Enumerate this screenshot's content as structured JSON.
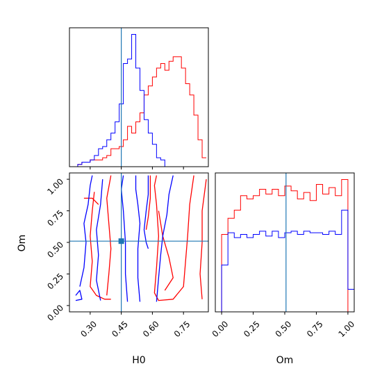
{
  "colors": {
    "series_a": "#ff0000",
    "series_b": "#0000ff",
    "truth": "#1f77b4",
    "axes": "#000000"
  },
  "chart_data": [
    {
      "type": "histogram",
      "panel": "top-left",
      "parameter": "H0",
      "xlim": [
        0.2,
        0.87
      ],
      "bin_edges": [
        0.2,
        0.22,
        0.24,
        0.26,
        0.28,
        0.3,
        0.32,
        0.34,
        0.36,
        0.38,
        0.4,
        0.42,
        0.44,
        0.46,
        0.48,
        0.5,
        0.52,
        0.54,
        0.56,
        0.58,
        0.6,
        0.62,
        0.64,
        0.66,
        0.68,
        0.7,
        0.72,
        0.74,
        0.76,
        0.78,
        0.8,
        0.82,
        0.84,
        0.86
      ],
      "truth_x": 0.45,
      "yticks": "none",
      "x_tick_labels": "hidden",
      "series": [
        {
          "color": "red",
          "counts": [
            0,
            0,
            1,
            2,
            2,
            3,
            3,
            3,
            4,
            5,
            8,
            8,
            9,
            12,
            18,
            15,
            20,
            24,
            32,
            36,
            40,
            44,
            46,
            43,
            47,
            49,
            49,
            44,
            37,
            32,
            23,
            12,
            4
          ]
        },
        {
          "color": "blue",
          "counts": [
            0,
            0,
            1,
            2,
            2,
            3,
            5,
            8,
            9,
            12,
            15,
            20,
            28,
            46,
            48,
            59,
            44,
            34,
            21,
            15,
            10,
            4,
            3,
            0,
            0,
            0,
            0,
            0,
            0,
            0,
            0,
            0,
            0
          ]
        }
      ]
    },
    {
      "type": "contour",
      "panel": "bottom-left",
      "xlabel": "H0",
      "ylabel": "Om",
      "xlim": [
        0.2,
        0.87
      ],
      "ylim": [
        -0.05,
        1.05
      ],
      "xticks": [
        "0.30",
        "0.45",
        "0.60",
        "0.75"
      ],
      "yticks": [
        "0.00",
        "0.25",
        "0.50",
        "0.75",
        "1.00"
      ],
      "truth": {
        "x": 0.45,
        "y": 0.51
      },
      "series": [
        {
          "color": "red",
          "contours": [
            [
              [
                0.32,
                0.9
              ],
              [
                0.31,
                0.75
              ],
              [
                0.3,
                0.55
              ],
              [
                0.31,
                0.35
              ],
              [
                0.3,
                0.15
              ],
              [
                0.33,
                0.08
              ],
              [
                0.37,
                0.05
              ],
              [
                0.4,
                0.05
              ]
            ],
            [
              [
                0.4,
                1.03
              ],
              [
                0.38,
                0.85
              ],
              [
                0.39,
                0.65
              ],
              [
                0.4,
                0.45
              ],
              [
                0.39,
                0.25
              ],
              [
                0.38,
                0.08
              ]
            ],
            [
              [
                0.8,
                1.03
              ],
              [
                0.78,
                0.8
              ],
              [
                0.77,
                0.55
              ],
              [
                0.76,
                0.35
              ],
              [
                0.75,
                0.15
              ],
              [
                0.7,
                0.05
              ],
              [
                0.63,
                0.04
              ],
              [
                0.61,
                0.1
              ],
              [
                0.62,
                0.3
              ],
              [
                0.63,
                0.55
              ],
              [
                0.62,
                0.8
              ],
              [
                0.61,
                0.95
              ],
              [
                0.62,
                1.03
              ]
            ],
            [
              [
                0.86,
                1.0
              ],
              [
                0.84,
                0.75
              ],
              [
                0.84,
                0.5
              ],
              [
                0.83,
                0.25
              ],
              [
                0.84,
                0.05
              ]
            ],
            [
              [
                0.63,
                0.75
              ],
              [
                0.65,
                0.55
              ],
              [
                0.68,
                0.38
              ],
              [
                0.7,
                0.22
              ],
              [
                0.66,
                0.12
              ]
            ],
            [
              [
                0.59,
                1.03
              ],
              [
                0.59,
                0.85
              ],
              [
                0.58,
                0.7
              ],
              [
                0.57,
                0.6
              ]
            ],
            [
              [
                0.27,
                0.85
              ],
              [
                0.31,
                0.85
              ],
              [
                0.34,
                0.8
              ]
            ]
          ]
        },
        {
          "color": "blue",
          "contours": [
            [
              [
                0.48,
                0.03
              ],
              [
                0.47,
                0.25
              ],
              [
                0.47,
                0.5
              ],
              [
                0.46,
                0.75
              ],
              [
                0.45,
                0.92
              ],
              [
                0.46,
                1.03
              ]
            ],
            [
              [
                0.54,
                0.03
              ],
              [
                0.53,
                0.22
              ],
              [
                0.53,
                0.45
              ],
              [
                0.54,
                0.65
              ],
              [
                0.53,
                0.8
              ],
              [
                0.52,
                0.92
              ],
              [
                0.52,
                1.03
              ]
            ],
            [
              [
                0.25,
                0.15
              ],
              [
                0.27,
                0.3
              ],
              [
                0.28,
                0.5
              ],
              [
                0.27,
                0.65
              ],
              [
                0.29,
                0.8
              ],
              [
                0.3,
                0.95
              ],
              [
                0.31,
                1.03
              ]
            ],
            [
              [
                0.35,
                0.04
              ],
              [
                0.33,
                0.2
              ],
              [
                0.34,
                0.4
              ],
              [
                0.33,
                0.6
              ],
              [
                0.35,
                0.8
              ],
              [
                0.36,
                1.0
              ]
            ],
            [
              [
                0.58,
                1.03
              ],
              [
                0.58,
                0.88
              ],
              [
                0.57,
                0.75
              ],
              [
                0.56,
                0.6
              ],
              [
                0.57,
                0.5
              ],
              [
                0.58,
                0.45
              ]
            ],
            [
              [
                0.7,
                1.03
              ],
              [
                0.68,
                0.88
              ],
              [
                0.67,
                0.72
              ],
              [
                0.65,
                0.55
              ],
              [
                0.64,
                0.4
              ],
              [
                0.63,
                0.22
              ],
              [
                0.62,
                0.03
              ]
            ],
            [
              [
                0.23,
                0.08
              ],
              [
                0.25,
                0.12
              ],
              [
                0.26,
                0.05
              ],
              [
                0.23,
                0.04
              ]
            ]
          ]
        }
      ]
    },
    {
      "type": "histogram",
      "panel": "bottom-right",
      "parameter": "Om",
      "xlabel": "Om",
      "xlim": [
        -0.05,
        1.05
      ],
      "xticks": [
        "0.00",
        "0.25",
        "0.50",
        "0.75",
        "1.00"
      ],
      "bin_edges": [
        -0.05,
        0.0,
        0.05,
        0.1,
        0.15,
        0.2,
        0.25,
        0.3,
        0.35,
        0.4,
        0.45,
        0.5,
        0.55,
        0.6,
        0.65,
        0.7,
        0.75,
        0.8,
        0.85,
        0.9,
        0.95,
        1.0,
        1.05
      ],
      "truth_x": 0.51,
      "yticks": "none",
      "series": [
        {
          "color": "red",
          "counts": [
            0,
            48,
            58,
            63,
            72,
            70,
            72,
            76,
            73,
            76,
            72,
            78,
            75,
            70,
            74,
            69,
            79,
            73,
            77,
            72,
            82,
            0
          ]
        },
        {
          "color": "blue",
          "counts": [
            0,
            29,
            49,
            46,
            48,
            46,
            48,
            50,
            47,
            50,
            46,
            49,
            50,
            48,
            50,
            49,
            49,
            48,
            50,
            48,
            63,
            14
          ]
        }
      ]
    }
  ]
}
